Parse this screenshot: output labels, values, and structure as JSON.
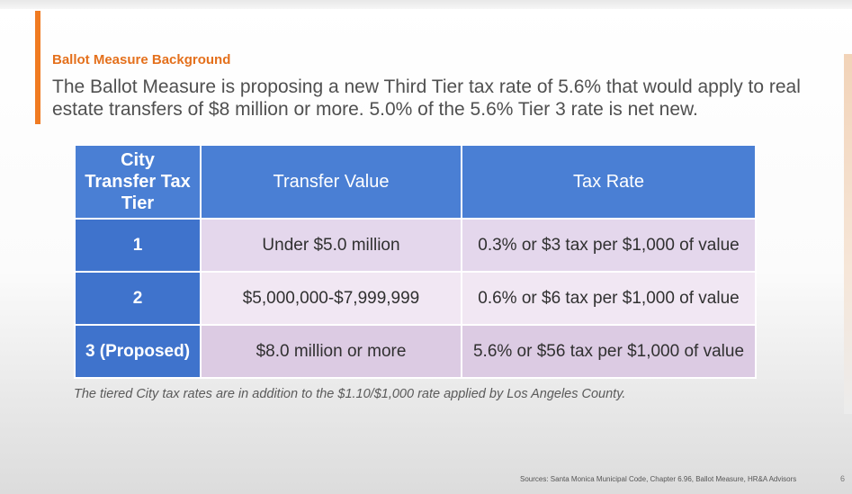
{
  "slide": {
    "section_title": "Ballot Measure Background",
    "description": "The Ballot Measure is proposing a new Third Tier tax rate of 5.6% that would apply to real estate transfers of $8 million or more. 5.0% of the 5.6% Tier 3 rate is net new.",
    "footnote": "The tiered City tax rates are in addition to the $1.10/$1,000 rate applied by Los Angeles County.",
    "sources": "Sources: Santa Monica Municipal Code, Chapter 6.96, Ballot Measure, HR&A Advisors",
    "page_number": "6",
    "accent_color": "#f07b22",
    "header_color": "#4a7fd4"
  },
  "table": {
    "headers": [
      "City Transfer Tax Tier",
      "Transfer Value",
      "Tax Rate"
    ],
    "rows": [
      {
        "tier": "1",
        "value": "Under $5.0 million",
        "rate": "0.3% or $3 tax per $1,000 of value"
      },
      {
        "tier": "2",
        "value": "$5,000,000-$7,999,999",
        "rate": "0.6% or $6 tax per $1,000 of value"
      },
      {
        "tier": "3 (Proposed)",
        "value": "$8.0 million or more",
        "rate": "5.6% or $56 tax per $1,000 of value"
      }
    ]
  }
}
